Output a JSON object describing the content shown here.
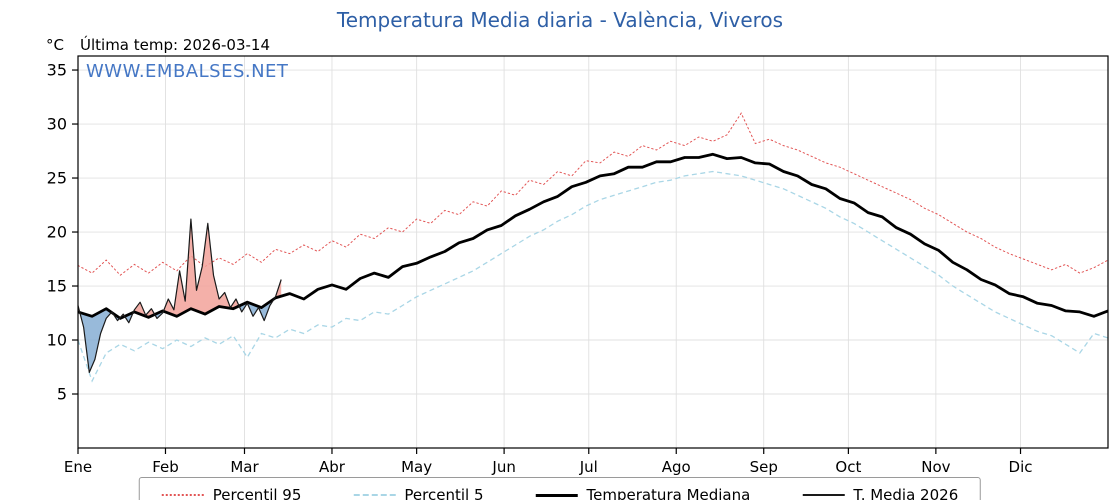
{
  "header": {
    "title": "Temperatura Media diaria - València, Viveros",
    "unit_label": "°C",
    "last_temp_label": "Última temp: 2026-03-14",
    "watermark": "WWW.EMBALSES.NET"
  },
  "chart_data": {
    "type": "line",
    "title": "Temperatura Media diaria - València, Viveros",
    "xlabel": "",
    "ylabel": "°C",
    "x_axis": {
      "unit": "day_of_year",
      "range": [
        0,
        365
      ],
      "month_labels": [
        "Ene",
        "Feb",
        "Mar",
        "Abr",
        "May",
        "Jun",
        "Jul",
        "Ago",
        "Sep",
        "Oct",
        "Nov",
        "Dic"
      ],
      "month_start_days": [
        0,
        31,
        59,
        90,
        120,
        151,
        181,
        212,
        243,
        273,
        304,
        334
      ],
      "grid": true
    },
    "y_axis": {
      "range": [
        0,
        36.3
      ],
      "ticks": [
        5,
        10,
        15,
        20,
        25,
        30,
        35
      ],
      "grid": true
    },
    "colors": {
      "title": "#2e5fa6",
      "watermark": "#4577c5",
      "grid": "#e0e0e0",
      "axis": "#000000",
      "fill_above": "#f2a29a",
      "fill_below": "#8db3d6"
    },
    "legend": {
      "position": "bottom-center"
    },
    "annotations": {
      "last_measurement_date": "2026-03-14"
    },
    "series": [
      {
        "name": "Percentil 95",
        "style": "dotted",
        "color": "#e25555",
        "x0": 0,
        "dx": 5,
        "values": [
          16.9,
          16.2,
          17.4,
          16.0,
          17.0,
          16.2,
          17.2,
          16.4,
          17.8,
          16.8,
          17.6,
          17.0,
          18.0,
          17.2,
          18.4,
          18.0,
          18.8,
          18.2,
          19.2,
          18.6,
          19.8,
          19.4,
          20.4,
          20.0,
          21.2,
          20.8,
          22.0,
          21.6,
          22.8,
          22.4,
          23.8,
          23.4,
          24.8,
          24.4,
          25.6,
          25.2,
          26.6,
          26.4,
          27.4,
          27.0,
          28.0,
          27.6,
          28.4,
          28.0,
          28.8,
          28.4,
          29.0,
          31.0,
          28.2,
          28.6,
          28.0,
          27.6,
          27.0,
          26.4,
          26.0,
          25.4,
          24.8,
          24.2,
          23.6,
          23.0,
          22.2,
          21.6,
          20.8,
          20.0,
          19.4,
          18.6,
          18.0,
          17.5,
          17.0,
          16.5,
          17.0,
          16.2,
          16.7,
          17.4
        ]
      },
      {
        "name": "Percentil 5",
        "style": "dashed",
        "color": "#a9d6e6",
        "x0": 0,
        "dx": 5,
        "values": [
          10.0,
          6.2,
          8.8,
          9.6,
          9.0,
          9.8,
          9.2,
          10.0,
          9.4,
          10.2,
          9.6,
          10.4,
          8.4,
          10.6,
          10.2,
          11.0,
          10.6,
          11.4,
          11.2,
          12.0,
          11.8,
          12.6,
          12.4,
          13.2,
          14.0,
          14.6,
          15.2,
          15.8,
          16.4,
          17.2,
          18.0,
          18.8,
          19.6,
          20.2,
          21.0,
          21.6,
          22.4,
          23.0,
          23.4,
          23.8,
          24.2,
          24.6,
          24.8,
          25.2,
          25.4,
          25.6,
          25.4,
          25.2,
          24.8,
          24.4,
          24.0,
          23.4,
          22.8,
          22.2,
          21.4,
          20.8,
          20.0,
          19.2,
          18.4,
          17.6,
          16.8,
          16.0,
          15.0,
          14.2,
          13.4,
          12.6,
          12.0,
          11.4,
          10.8,
          10.4,
          9.6,
          8.8,
          10.6,
          10.2
        ]
      },
      {
        "name": "Temperatura Mediana",
        "style": "solid-thick",
        "color": "#000000",
        "x0": 0,
        "dx": 5,
        "values": [
          12.6,
          12.2,
          12.9,
          12.0,
          12.6,
          12.1,
          12.7,
          12.2,
          12.9,
          12.4,
          13.1,
          12.9,
          13.5,
          13.0,
          13.9,
          14.3,
          13.8,
          14.7,
          15.1,
          14.7,
          15.7,
          16.2,
          15.8,
          16.8,
          17.1,
          17.7,
          18.2,
          19.0,
          19.4,
          20.2,
          20.6,
          21.5,
          22.1,
          22.8,
          23.3,
          24.2,
          24.6,
          25.2,
          25.4,
          26.0,
          26.0,
          26.5,
          26.5,
          26.9,
          26.9,
          27.2,
          26.8,
          26.9,
          26.4,
          26.3,
          25.6,
          25.2,
          24.4,
          24.0,
          23.1,
          22.7,
          21.8,
          21.4,
          20.4,
          19.8,
          18.9,
          18.3,
          17.2,
          16.5,
          15.6,
          15.1,
          14.3,
          14.0,
          13.4,
          13.2,
          12.7,
          12.6,
          12.2,
          12.7
        ]
      },
      {
        "name": "T. Media 2026",
        "style": "solid-thin",
        "color": "#1a1a1a",
        "x0": 0,
        "dx": 2,
        "fill_vs": "Temperatura Mediana",
        "values": [
          13.2,
          11.2,
          7.0,
          8.2,
          10.6,
          12.0,
          12.6,
          11.8,
          12.4,
          11.6,
          12.8,
          13.5,
          12.3,
          12.9,
          12.0,
          12.5,
          13.8,
          12.8,
          16.4,
          13.6,
          21.2,
          14.6,
          16.8,
          20.8,
          16.0,
          13.8,
          14.4,
          13.0,
          13.8,
          12.6,
          13.4,
          12.2,
          13.0,
          11.8,
          13.2,
          14.0,
          15.6
        ]
      }
    ]
  }
}
